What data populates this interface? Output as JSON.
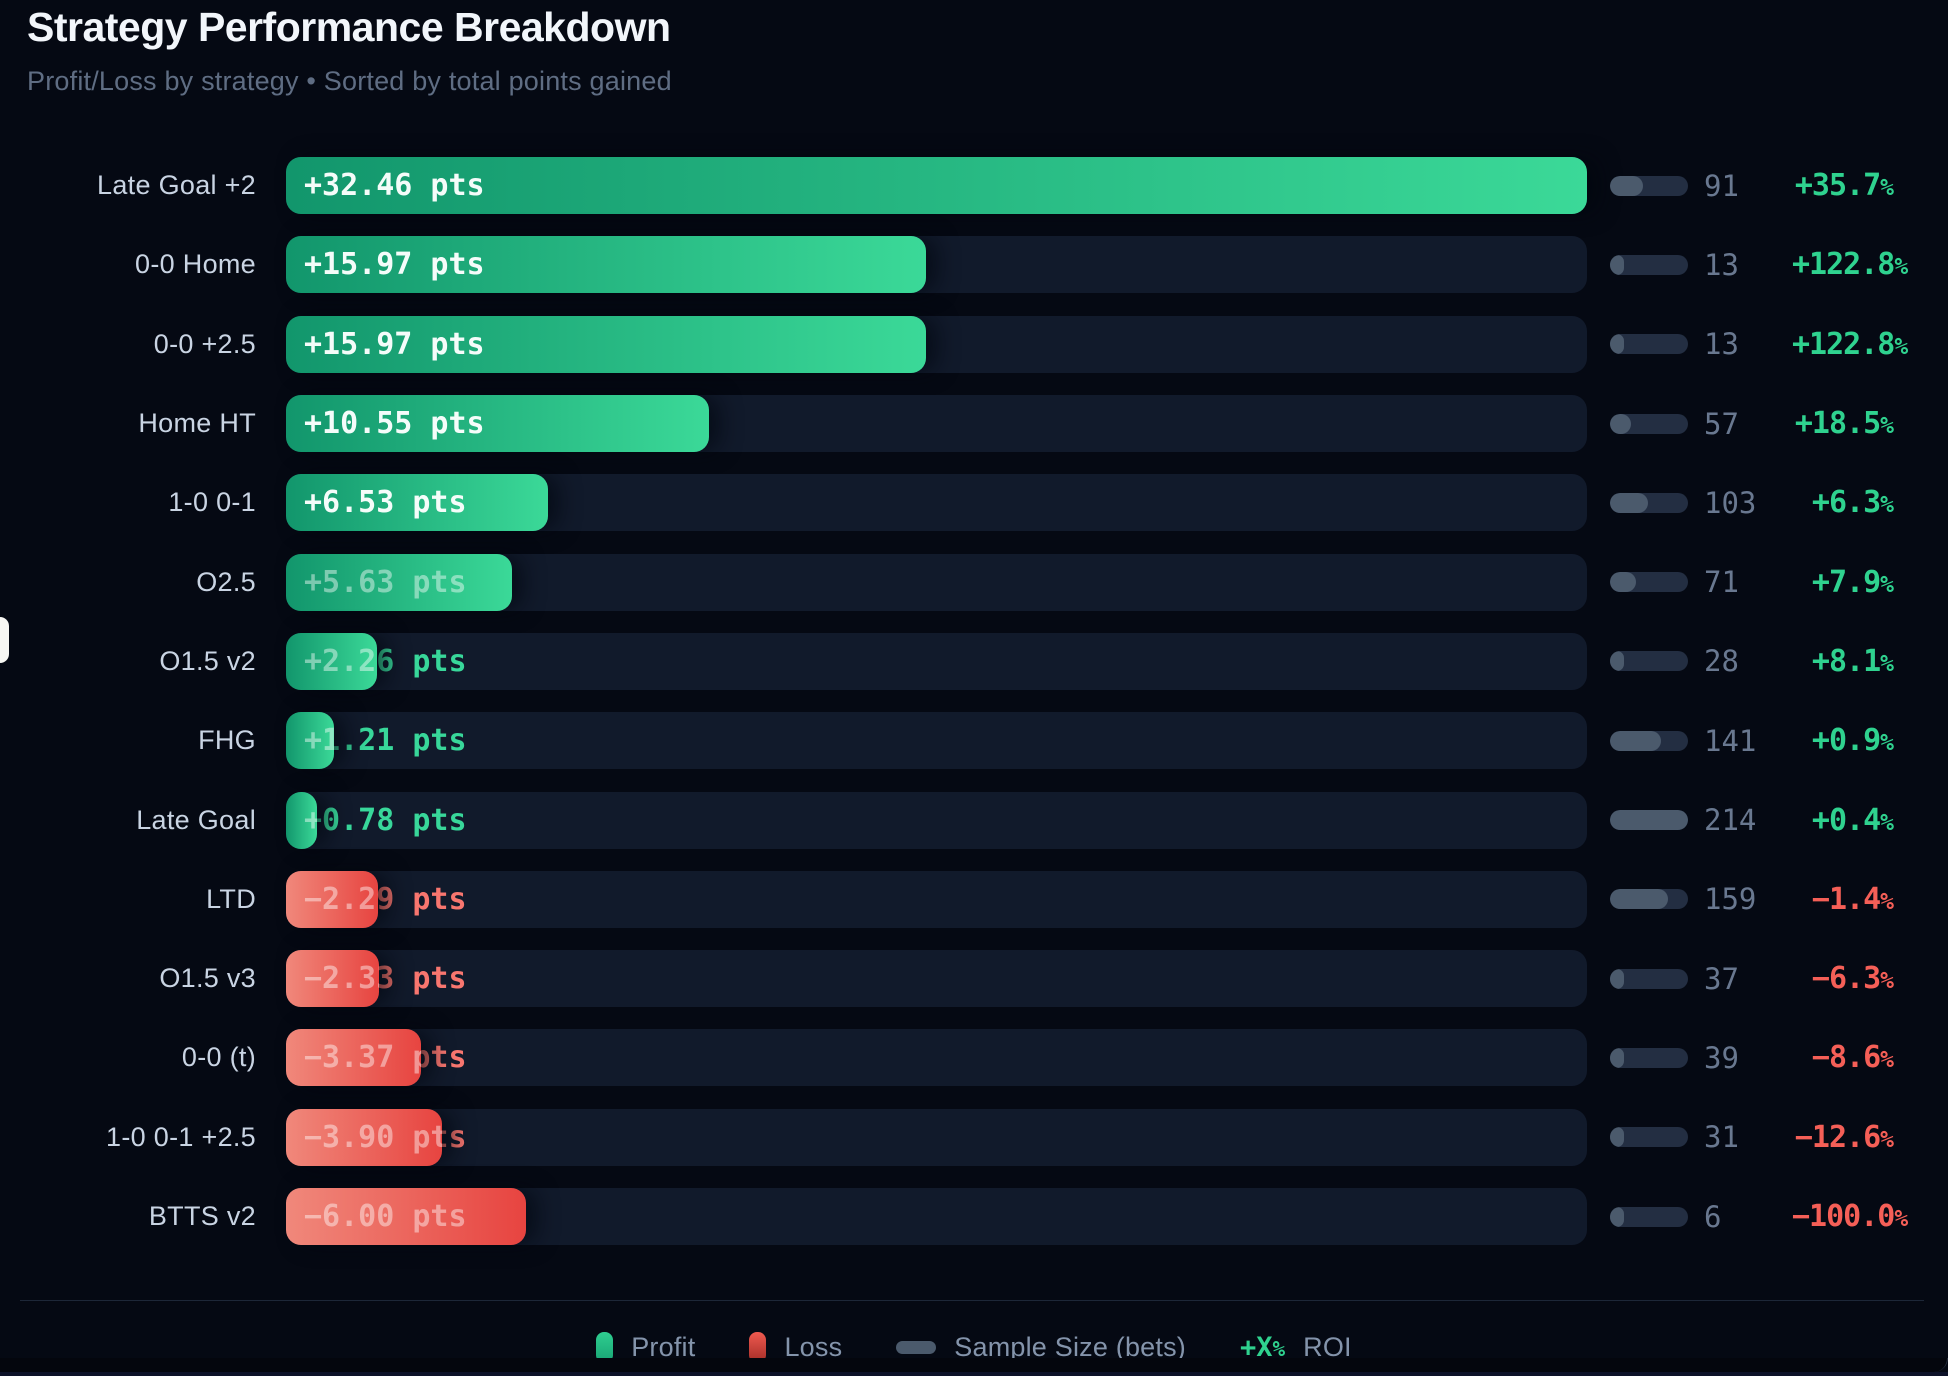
{
  "header": {
    "title": "Strategy Performance Breakdown",
    "subtitle": "Profit/Loss by strategy • Sorted by total points gained"
  },
  "legend": {
    "profit_label": "Profit",
    "loss_label": "Loss",
    "sample_label": "Sample Size (bets)",
    "roi_symbol": "+X",
    "roi_label": "ROI"
  },
  "colors": {
    "profit_accent": "#2fd28f",
    "loss_accent": "#f55f57",
    "bar_green_start": "#12966c",
    "bar_green_end": "#3bd998",
    "bar_red_start": "#f0887b",
    "bar_red_end": "#e74440",
    "track": "#111a2b",
    "background": "#050913"
  },
  "chart_data": {
    "type": "bar",
    "orientation": "horizontal",
    "title": "Strategy Performance Breakdown",
    "value_unit": "pts",
    "xlim": [
      0,
      32.46
    ],
    "max_pts": 32.46,
    "max_bets": 214,
    "grid": false,
    "legend_position": "bottom",
    "rows": [
      {
        "strategy": "Late Goal +2",
        "pts": 32.46,
        "pts_label": "+32.46 pts",
        "bets": 91,
        "roi": "+35.7"
      },
      {
        "strategy": "0-0 Home",
        "pts": 15.97,
        "pts_label": "+15.97 pts",
        "bets": 13,
        "roi": "+122.8"
      },
      {
        "strategy": "0-0 +2.5",
        "pts": 15.97,
        "pts_label": "+15.97 pts",
        "bets": 13,
        "roi": "+122.8"
      },
      {
        "strategy": "Home HT",
        "pts": 10.55,
        "pts_label": "+10.55 pts",
        "bets": 57,
        "roi": "+18.5"
      },
      {
        "strategy": "1-0 0-1",
        "pts": 6.53,
        "pts_label": "+6.53 pts",
        "bets": 103,
        "roi": "+6.3"
      },
      {
        "strategy": "O2.5",
        "pts": 5.63,
        "pts_label": "+5.63 pts",
        "bets": 71,
        "roi": "+7.9"
      },
      {
        "strategy": "O1.5 v2",
        "pts": 2.26,
        "pts_label": "+2.26 pts",
        "bets": 28,
        "roi": "+8.1"
      },
      {
        "strategy": "FHG",
        "pts": 1.21,
        "pts_label": "+1.21 pts",
        "bets": 141,
        "roi": "+0.9"
      },
      {
        "strategy": "Late Goal",
        "pts": 0.78,
        "pts_label": "+0.78 pts",
        "bets": 214,
        "roi": "+0.4"
      },
      {
        "strategy": "LTD",
        "pts": -2.29,
        "pts_label": "−2.29 pts",
        "bets": 159,
        "roi": "−1.4"
      },
      {
        "strategy": "O1.5 v3",
        "pts": -2.33,
        "pts_label": "−2.33 pts",
        "bets": 37,
        "roi": "−6.3"
      },
      {
        "strategy": "0-0 (t)",
        "pts": -3.37,
        "pts_label": "−3.37 pts",
        "bets": 39,
        "roi": "−8.6"
      },
      {
        "strategy": "1-0 0-1 +2.5",
        "pts": -3.9,
        "pts_label": "−3.90 pts",
        "bets": 31,
        "roi": "−12.6"
      },
      {
        "strategy": "BTTS v2",
        "pts": -6.0,
        "pts_label": "−6.00 pts",
        "bets": 6,
        "roi": "−100.0"
      }
    ]
  }
}
